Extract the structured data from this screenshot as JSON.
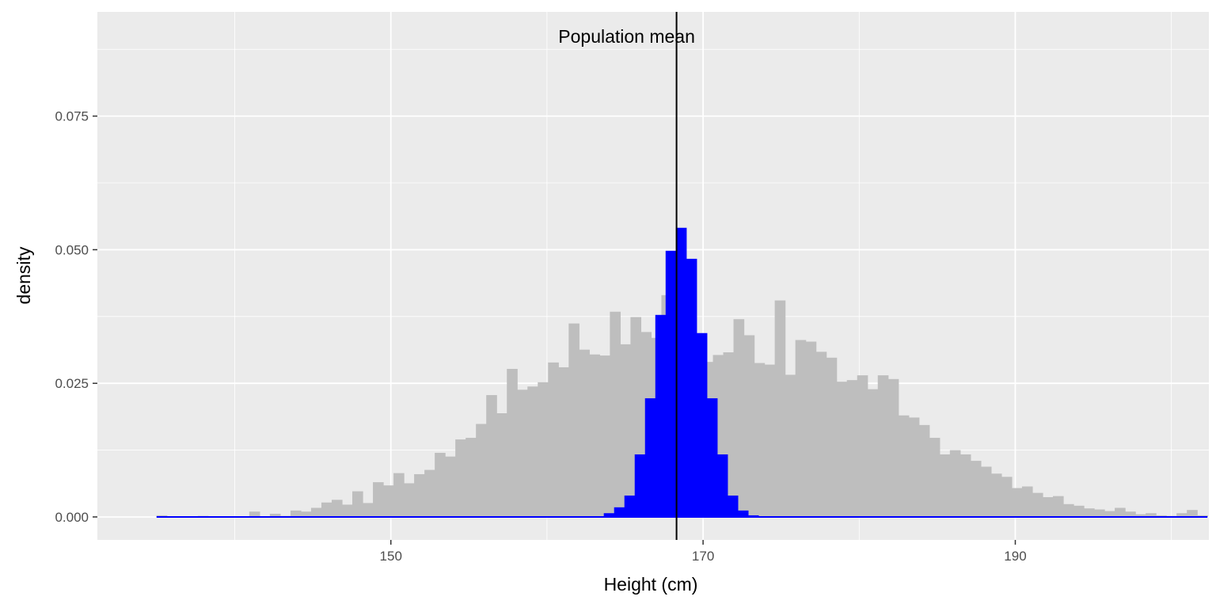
{
  "chart_data": {
    "type": "bar",
    "xlabel": "Height (cm)",
    "ylabel": "density",
    "xlim": [
      131.2,
      202.4
    ],
    "ylim": [
      -0.0043,
      0.0945
    ],
    "x_ticks": [
      150,
      170,
      190
    ],
    "x_minor_ticks": [
      140,
      160,
      180,
      200
    ],
    "y_ticks": [
      0.0,
      0.025,
      0.05,
      0.075
    ],
    "y_tick_labels": [
      "0.000",
      "0.025",
      "0.050",
      "0.075"
    ],
    "y_minor_ticks": [
      0.0125,
      0.0375,
      0.0625,
      0.0875
    ],
    "grid": true,
    "bin_width": 0.66,
    "series": [
      {
        "role": "population",
        "color": "#bebebe",
        "bin_start": 134.99,
        "values": [
          0.0003,
          0.0001,
          0.0001,
          0.0001,
          0.0002,
          0.0001,
          0.0001,
          0.0001,
          0.0001,
          0.001,
          0.0001,
          0.0006,
          0.0002,
          0.0012,
          0.001,
          0.0017,
          0.0027,
          0.0032,
          0.0023,
          0.0048,
          0.0026,
          0.0065,
          0.0059,
          0.0082,
          0.0063,
          0.008,
          0.0088,
          0.012,
          0.0113,
          0.0145,
          0.0148,
          0.0174,
          0.0228,
          0.0194,
          0.0277,
          0.0238,
          0.0244,
          0.0252,
          0.0289,
          0.028,
          0.0362,
          0.0313,
          0.0304,
          0.0302,
          0.0384,
          0.0323,
          0.0374,
          0.0346,
          0.0335,
          0.0415,
          0.023,
          0.029,
          0.0304,
          0.029,
          0.0303,
          0.0308,
          0.037,
          0.034,
          0.0288,
          0.0285,
          0.0405,
          0.0266,
          0.0331,
          0.0328,
          0.0309,
          0.0298,
          0.0253,
          0.0256,
          0.0265,
          0.0239,
          0.0265,
          0.0258,
          0.019,
          0.0186,
          0.0172,
          0.0148,
          0.0117,
          0.0125,
          0.0117,
          0.0105,
          0.0094,
          0.0081,
          0.0075,
          0.0054,
          0.0057,
          0.0045,
          0.0037,
          0.0039,
          0.0024,
          0.0021,
          0.0016,
          0.0014,
          0.0011,
          0.0017,
          0.001,
          0.0005,
          0.0007,
          0.0003,
          0.0002,
          0.0007,
          0.0013,
          0.0003
        ]
      },
      {
        "role": "sample-means",
        "color": "#0000ff",
        "bin_start": 163.64,
        "values": [
          0.0007,
          0.0018,
          0.004,
          0.0117,
          0.0222,
          0.0378,
          0.0498,
          0.0541,
          0.0483,
          0.0344,
          0.0222,
          0.0117,
          0.004,
          0.0012,
          0.0003
        ]
      }
    ],
    "vline": {
      "x": 168.3,
      "label": "Population mean"
    }
  }
}
